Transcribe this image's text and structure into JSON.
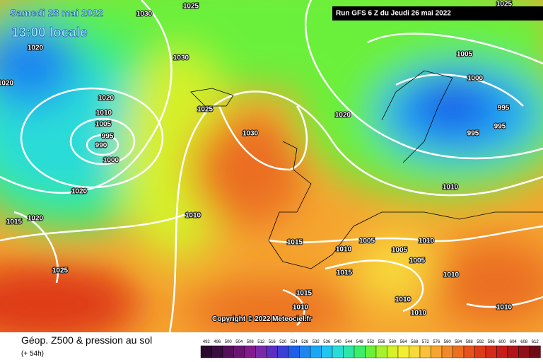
{
  "header": {
    "date": "Samedi 28 mai 2022",
    "time": "13:00 locale",
    "run": "Run GFS 6 Z du Jeudi 26 mai 2022"
  },
  "copyright": "Copyright © 2022 Meteociel.fr",
  "footer": {
    "title": "Géop. Z500 & pression au sol",
    "lead": "(+ 54h)"
  },
  "isobar_labels": [
    "1030",
    "1025",
    "1025",
    "1020",
    "1020",
    "1030",
    "1020",
    "1010",
    "1005",
    "995",
    "990",
    "1000",
    "1025",
    "1030",
    "1020",
    "1005",
    "1000",
    "995",
    "995",
    "995",
    "1010",
    "1020",
    "1015",
    "1020",
    "1010",
    "1015",
    "1010",
    "1005",
    "1005",
    "1010",
    "1005",
    "1025",
    "1015",
    "1010",
    "1015",
    "1010",
    "1010",
    "1010",
    "1010"
  ],
  "colorbar": {
    "labels": [
      492,
      496,
      500,
      504,
      508,
      512,
      516,
      520,
      524,
      528,
      532,
      536,
      540,
      544,
      548,
      552,
      556,
      560,
      564,
      568,
      572,
      576,
      580,
      584,
      588,
      592,
      596,
      600,
      604,
      608,
      612
    ],
    "colors": [
      "#2a0a2a",
      "#3a0d3d",
      "#55105a",
      "#6a1573",
      "#851a8f",
      "#7a2aa8",
      "#5a2ec0",
      "#3b3fd6",
      "#1f5ee8",
      "#1f86f0",
      "#1aa7f5",
      "#22c4f2",
      "#29dcd8",
      "#2ee6a8",
      "#3ced6a",
      "#6af03a",
      "#a6f22e",
      "#d6f02a",
      "#f3ee30",
      "#f7d93a",
      "#f8c138",
      "#f5a530",
      "#f08a28",
      "#eb6e22",
      "#e5521c",
      "#de3a18",
      "#d52a18",
      "#c51d1a",
      "#b0141a",
      "#90101a",
      "#6e0c16"
    ]
  }
}
